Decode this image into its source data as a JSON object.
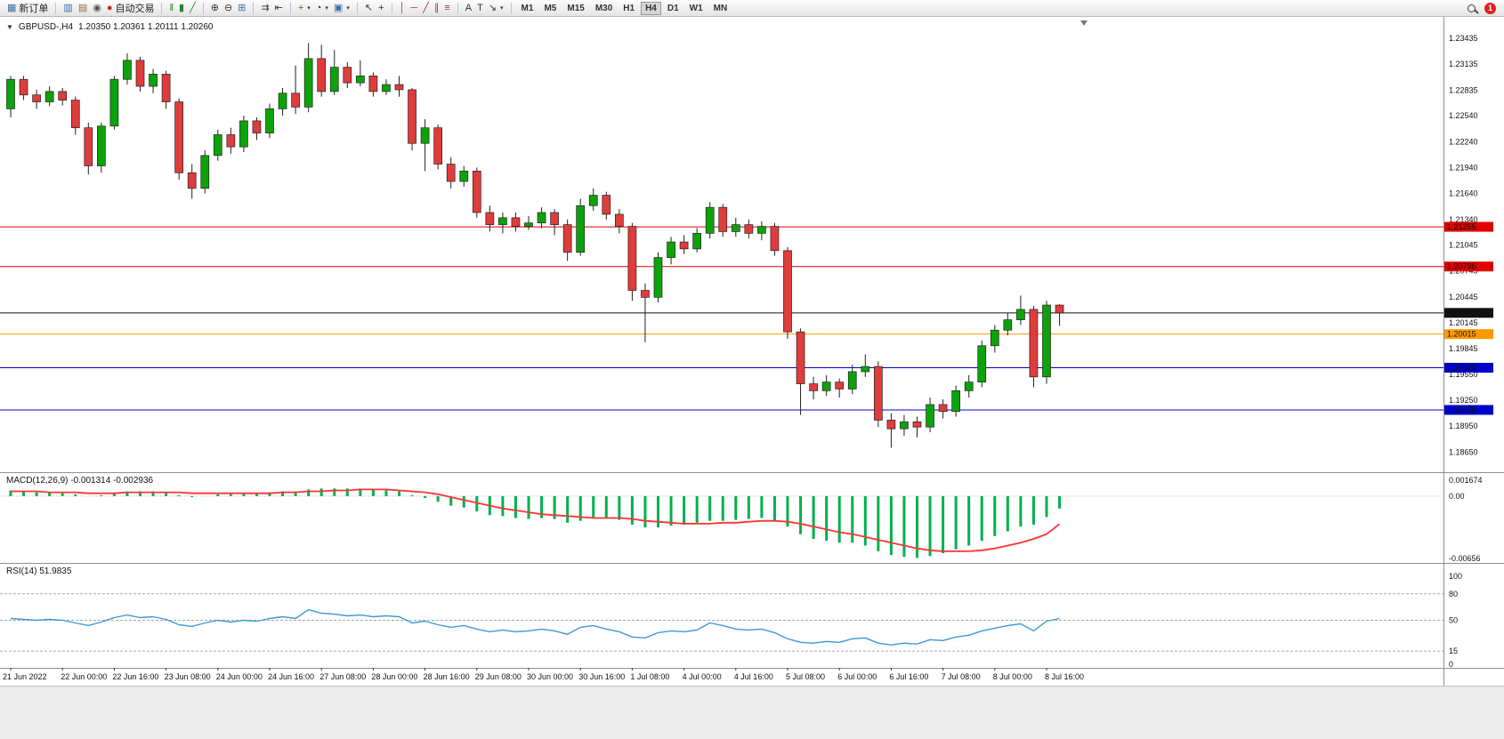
{
  "toolbar": {
    "groups": [
      {
        "name": "trade",
        "items": [
          {
            "name": "new-order-button",
            "glyph": "▦",
            "glyph_color": "#3b6ea5",
            "label": "新订单"
          }
        ]
      },
      {
        "name": "windows",
        "items": [
          {
            "name": "charts-icon",
            "glyph": "▥",
            "glyph_color": "#3b6ea5"
          },
          {
            "name": "profiles-icon",
            "glyph": "▤",
            "glyph_color": "#8a6d3b"
          },
          {
            "name": "alerts-icon",
            "glyph": "◉",
            "glyph_color": "#555555"
          },
          {
            "name": "auto-trading-button",
            "glyph": "●",
            "glyph_color": "#cc2222",
            "label": "自动交易"
          }
        ]
      },
      {
        "name": "chart-type",
        "items": [
          {
            "name": "bar-chart-button",
            "glyph": "‖",
            "glyph_color": "#2e7d32"
          },
          {
            "name": "candlestick-button",
            "glyph": "▮",
            "glyph_color": "#2e7d32"
          },
          {
            "name": "line-chart-button",
            "glyph": "╱",
            "glyph_color": "#2e7d32"
          }
        ]
      },
      {
        "name": "zoom",
        "items": [
          {
            "name": "zoom-in-button",
            "glyph": "⊕",
            "glyph_color": "#333333"
          },
          {
            "name": "zoom-out-button",
            "glyph": "⊖",
            "glyph_color": "#333333"
          },
          {
            "name": "tile-windows-button",
            "glyph": "⊞",
            "glyph_color": "#3b6ea5"
          }
        ]
      },
      {
        "name": "scroll",
        "items": [
          {
            "name": "auto-scroll-button",
            "glyph": "⇉",
            "glyph_color": "#333333"
          },
          {
            "name": "chart-shift-button",
            "glyph": "⇤",
            "glyph_color": "#333333"
          }
        ]
      },
      {
        "name": "insert",
        "items": [
          {
            "name": "indicators-button",
            "glyph": "+",
            "glyph_color": "#2e7d32",
            "dropdown": true
          },
          {
            "name": "periods-button",
            "glyph": "◔",
            "glyph_color": "#333333",
            "dropdown": true
          },
          {
            "name": "templates-button",
            "glyph": "▣",
            "glyph_color": "#3b6ea5",
            "dropdown": true
          }
        ]
      },
      {
        "name": "pointer",
        "items": [
          {
            "name": "cursor-button",
            "glyph": "↖",
            "glyph_color": "#333333"
          },
          {
            "name": "crosshair-button",
            "glyph": "+",
            "glyph_color": "#333333"
          }
        ]
      },
      {
        "name": "draw",
        "items": [
          {
            "name": "vertical-line-button",
            "glyph": "│",
            "glyph_color": "#b03030"
          },
          {
            "name": "horizontal-line-button",
            "glyph": "─",
            "glyph_color": "#b03030"
          },
          {
            "name": "trendline-button",
            "glyph": "╱",
            "glyph_color": "#b03030"
          },
          {
            "name": "equidistant-channel-button",
            "glyph": "∥",
            "glyph_color": "#b03030"
          },
          {
            "name": "fibonacci-button",
            "glyph": "≡",
            "glyph_color": "#b03030"
          }
        ]
      },
      {
        "name": "text",
        "items": [
          {
            "name": "text-button",
            "glyph": "A",
            "glyph_color": "#333333"
          },
          {
            "name": "text-label-button",
            "glyph": "T",
            "glyph_color": "#333333"
          },
          {
            "name": "arrows-button",
            "glyph": "↘",
            "glyph_color": "#333333",
            "dropdown": true
          }
        ]
      }
    ],
    "timeframes": {
      "items": [
        "M1",
        "M5",
        "M15",
        "M30",
        "H1",
        "H4",
        "D1",
        "W1",
        "MN"
      ],
      "active": "H4"
    },
    "notification_count": "1"
  },
  "chart": {
    "header": {
      "dropdown_glyph": "▼",
      "symbol_period": "GBPUSD-,H4",
      "ohlc": "1.20350 1.20361 1.20111 1.20260"
    },
    "price_axis": {
      "labels": [
        "1.23435",
        "1.23135",
        "1.22835",
        "1.22540",
        "1.22240",
        "1.21940",
        "1.21640",
        "1.21340",
        "1.21045",
        "1.20745",
        "1.20445",
        "1.20145",
        "1.19845",
        "1.19550",
        "1.19250",
        "1.18950",
        "1.18650"
      ]
    },
    "time_axis": {
      "labels": [
        "21 Jun 2022",
        "22 Jun 00:00",
        "22 Jun 16:00",
        "23 Jun 08:00",
        "24 Jun 00:00",
        "24 Jun 16:00",
        "27 Jun 08:00",
        "28 Jun 00:00",
        "28 Jun 16:00",
        "29 Jun 08:00",
        "30 Jun 00:00",
        "30 Jun 16:00",
        "1 Jul 08:00",
        "4 Jul 00:00",
        "4 Jul 16:00",
        "5 Jul 08:00",
        "6 Jul 00:00",
        "6 Jul 16:00",
        "7 Jul 08:00",
        "8 Jul 00:00",
        "8 Jul 16:00"
      ]
    },
    "hlines": [
      {
        "price": 1.21255,
        "color": "#dd0000",
        "tag": "1.21255"
      },
      {
        "price": 1.20796,
        "color": "#dd0000",
        "tag": "1.20796"
      },
      {
        "price": 1.2026,
        "color": "#111111",
        "tag": "1.20260"
      },
      {
        "price": 1.20015,
        "color": "#ff9900",
        "tag": "1.20015"
      },
      {
        "price": 1.19626,
        "color": "#0000cc",
        "tag": "1.19626"
      },
      {
        "price": 1.19138,
        "color": "#0000cc",
        "tag": "1.19138"
      }
    ],
    "colors": {
      "up": "#0ca30a",
      "down": "#e03c3c",
      "wick": "#222222"
    }
  },
  "macd": {
    "label": "MACD(12,26,9) -0.001314 -0.002936",
    "axis": [
      {
        "text": "0.001674",
        "value": 0.001674
      },
      {
        "text": "0.00",
        "value": 0
      },
      {
        "text": "-0.00656",
        "value": -0.00656
      }
    ],
    "colors": {
      "histogram": "#00b050",
      "signal": "#ff3333"
    }
  },
  "rsi": {
    "label": "RSI(14) 51.9835",
    "axis": [
      {
        "text": "100",
        "value": 100
      },
      {
        "text": "80",
        "value": 80
      },
      {
        "text": "50",
        "value": 50
      },
      {
        "text": "15",
        "value": 15
      },
      {
        "text": "0",
        "value": 0
      }
    ],
    "colors": {
      "line": "#3d9bd5",
      "levels": "#a8a8a8"
    }
  },
  "chart_data": {
    "type": "candlestick",
    "symbol": "GBPUSD-",
    "period": "H4",
    "ohlc_format": [
      "open",
      "high",
      "low",
      "close"
    ],
    "price_range": {
      "top": 1.236,
      "bottom": 1.185
    },
    "candles": [
      [
        1.2262,
        1.23,
        1.2252,
        1.2296
      ],
      [
        1.2296,
        1.23,
        1.2272,
        1.2278
      ],
      [
        1.2278,
        1.2284,
        1.2262,
        1.227
      ],
      [
        1.227,
        1.2288,
        1.2265,
        1.2282
      ],
      [
        1.2282,
        1.2286,
        1.2266,
        1.2272
      ],
      [
        1.2272,
        1.2276,
        1.2232,
        1.224
      ],
      [
        1.224,
        1.2246,
        1.2186,
        1.2196
      ],
      [
        1.2196,
        1.2246,
        1.2188,
        1.2242
      ],
      [
        1.2242,
        1.23,
        1.2238,
        1.2296
      ],
      [
        1.2296,
        1.2326,
        1.229,
        1.2318
      ],
      [
        1.2318,
        1.2322,
        1.2282,
        1.2288
      ],
      [
        1.2288,
        1.2308,
        1.228,
        1.2302
      ],
      [
        1.2302,
        1.2306,
        1.2262,
        1.227
      ],
      [
        1.227,
        1.2274,
        1.218,
        1.2188
      ],
      [
        1.2188,
        1.2198,
        1.2158,
        1.217
      ],
      [
        1.217,
        1.2214,
        1.2164,
        1.2208
      ],
      [
        1.2208,
        1.2238,
        1.2202,
        1.2232
      ],
      [
        1.2232,
        1.224,
        1.221,
        1.2218
      ],
      [
        1.2218,
        1.2254,
        1.2212,
        1.2248
      ],
      [
        1.2248,
        1.2252,
        1.2226,
        1.2234
      ],
      [
        1.2234,
        1.2268,
        1.2228,
        1.2262
      ],
      [
        1.2262,
        1.2286,
        1.2254,
        1.228
      ],
      [
        1.228,
        1.2312,
        1.2256,
        1.2264
      ],
      [
        1.2264,
        1.2338,
        1.2258,
        1.232
      ],
      [
        1.232,
        1.2336,
        1.2276,
        1.2282
      ],
      [
        1.2282,
        1.233,
        1.2278,
        1.231
      ],
      [
        1.231,
        1.2316,
        1.2286,
        1.2292
      ],
      [
        1.2292,
        1.2318,
        1.2288,
        1.23
      ],
      [
        1.23,
        1.2304,
        1.2276,
        1.2282
      ],
      [
        1.2282,
        1.2296,
        1.2278,
        1.229
      ],
      [
        1.229,
        1.23,
        1.2276,
        1.2284
      ],
      [
        1.2284,
        1.2286,
        1.2214,
        1.2222
      ],
      [
        1.2222,
        1.225,
        1.219,
        1.224
      ],
      [
        1.224,
        1.2244,
        1.2192,
        1.2198
      ],
      [
        1.2198,
        1.2206,
        1.217,
        1.2178
      ],
      [
        1.2178,
        1.2196,
        1.2172,
        1.219
      ],
      [
        1.219,
        1.2194,
        1.2136,
        1.2142
      ],
      [
        1.2142,
        1.215,
        1.212,
        1.2128
      ],
      [
        1.2128,
        1.2142,
        1.2118,
        1.2136
      ],
      [
        1.2136,
        1.2142,
        1.212,
        1.2126
      ],
      [
        1.2126,
        1.2138,
        1.2122,
        1.213
      ],
      [
        1.213,
        1.2148,
        1.2124,
        1.2142
      ],
      [
        1.2142,
        1.2146,
        1.2116,
        1.2128
      ],
      [
        1.2128,
        1.2134,
        1.2086,
        1.2096
      ],
      [
        1.2096,
        1.2158,
        1.2092,
        1.215
      ],
      [
        1.215,
        1.217,
        1.2144,
        1.2162
      ],
      [
        1.2162,
        1.2166,
        1.2134,
        1.214
      ],
      [
        1.214,
        1.2146,
        1.2118,
        1.2126
      ],
      [
        1.2126,
        1.213,
        1.204,
        1.2052
      ],
      [
        1.2052,
        1.206,
        1.1992,
        1.2044
      ],
      [
        1.2044,
        1.2096,
        1.2038,
        1.209
      ],
      [
        1.209,
        1.2114,
        1.2082,
        1.2108
      ],
      [
        1.2108,
        1.2116,
        1.2094,
        1.21
      ],
      [
        1.21,
        1.2124,
        1.2096,
        1.2118
      ],
      [
        1.2118,
        1.2154,
        1.2112,
        1.2148
      ],
      [
        1.2148,
        1.2152,
        1.2114,
        1.212
      ],
      [
        1.212,
        1.2136,
        1.2114,
        1.2128
      ],
      [
        1.2128,
        1.2134,
        1.2112,
        1.2118
      ],
      [
        1.2118,
        1.2132,
        1.211,
        1.2126
      ],
      [
        1.2126,
        1.213,
        1.2092,
        1.2098
      ],
      [
        1.2098,
        1.2102,
        1.1996,
        1.2004
      ],
      [
        1.2004,
        1.2008,
        1.1908,
        1.1944
      ],
      [
        1.1944,
        1.1952,
        1.1926,
        1.1936
      ],
      [
        1.1936,
        1.1954,
        1.193,
        1.1946
      ],
      [
        1.1946,
        1.195,
        1.1928,
        1.1938
      ],
      [
        1.1938,
        1.1966,
        1.1932,
        1.1958
      ],
      [
        1.1958,
        1.1978,
        1.1952,
        1.1964
      ],
      [
        1.1964,
        1.197,
        1.1894,
        1.1902
      ],
      [
        1.1902,
        1.191,
        1.187,
        1.1892
      ],
      [
        1.1892,
        1.1908,
        1.1884,
        1.19
      ],
      [
        1.19,
        1.1906,
        1.1882,
        1.1894
      ],
      [
        1.1894,
        1.1928,
        1.1888,
        1.192
      ],
      [
        1.192,
        1.1926,
        1.1904,
        1.1912
      ],
      [
        1.1912,
        1.1942,
        1.1906,
        1.1936
      ],
      [
        1.1936,
        1.1954,
        1.1928,
        1.1946
      ],
      [
        1.1946,
        1.1994,
        1.194,
        1.1988
      ],
      [
        1.1988,
        1.2012,
        1.198,
        1.2006
      ],
      [
        1.2006,
        1.2026,
        1.2,
        1.2018
      ],
      [
        1.2018,
        1.2046,
        1.2012,
        1.203
      ],
      [
        1.203,
        1.2034,
        1.194,
        1.1952
      ],
      [
        1.1952,
        1.204,
        1.1944,
        1.2035
      ],
      [
        1.2035,
        1.20361,
        1.20111,
        1.2026
      ]
    ],
    "indicators": {
      "macd": {
        "range": {
          "max": 0.001674,
          "min": -0.00656
        },
        "histogram": [
          0.0006,
          0.0005,
          0.0004,
          0.0004,
          0.0003,
          0.0002,
          0.0,
          0.0001,
          0.0003,
          0.0005,
          0.0005,
          0.0005,
          0.0004,
          0.0001,
          -0.0001,
          0.0,
          0.0002,
          0.0002,
          0.0003,
          0.0003,
          0.0004,
          0.0005,
          0.0005,
          0.0007,
          0.0008,
          0.0008,
          0.0008,
          0.0008,
          0.0007,
          0.0006,
          0.0005,
          0.0001,
          -0.0002,
          -0.0006,
          -0.001,
          -0.0012,
          -0.0016,
          -0.002,
          -0.0021,
          -0.0023,
          -0.0024,
          -0.0023,
          -0.0024,
          -0.0028,
          -0.0026,
          -0.0023,
          -0.0023,
          -0.0025,
          -0.003,
          -0.0033,
          -0.0033,
          -0.0031,
          -0.003,
          -0.0028,
          -0.0026,
          -0.0026,
          -0.0025,
          -0.0024,
          -0.0023,
          -0.0026,
          -0.0032,
          -0.004,
          -0.0045,
          -0.0047,
          -0.0049,
          -0.0049,
          -0.0052,
          -0.0058,
          -0.0062,
          -0.0064,
          -0.0065,
          -0.0063,
          -0.006,
          -0.0056,
          -0.0052,
          -0.0047,
          -0.0042,
          -0.0037,
          -0.0032,
          -0.003,
          -0.0022,
          -0.0013
        ],
        "signal": [
          0.0005,
          0.0005,
          0.0005,
          0.0004,
          0.0004,
          0.0004,
          0.0003,
          0.0003,
          0.0003,
          0.0004,
          0.0004,
          0.0004,
          0.0004,
          0.0004,
          0.0003,
          0.0003,
          0.0003,
          0.0003,
          0.0003,
          0.0003,
          0.0003,
          0.0004,
          0.0004,
          0.0005,
          0.0005,
          0.0006,
          0.0006,
          0.0007,
          0.0007,
          0.0007,
          0.0006,
          0.0005,
          0.0004,
          0.0002,
          -0.0001,
          -0.0004,
          -0.0007,
          -0.001,
          -0.0013,
          -0.0015,
          -0.0017,
          -0.0019,
          -0.002,
          -0.0021,
          -0.0022,
          -0.0023,
          -0.0023,
          -0.0023,
          -0.0024,
          -0.0026,
          -0.0027,
          -0.0028,
          -0.0029,
          -0.0029,
          -0.0029,
          -0.0028,
          -0.0028,
          -0.0027,
          -0.0026,
          -0.0026,
          -0.0027,
          -0.0029,
          -0.0032,
          -0.0035,
          -0.0038,
          -0.004,
          -0.0043,
          -0.0046,
          -0.0049,
          -0.0052,
          -0.0055,
          -0.0057,
          -0.0058,
          -0.0058,
          -0.0058,
          -0.0057,
          -0.0055,
          -0.0052,
          -0.0049,
          -0.0045,
          -0.004,
          -0.00294
        ]
      },
      "rsi": {
        "range": {
          "max": 100,
          "min": 0
        },
        "levels": [
          80,
          50,
          15
        ],
        "values": [
          52,
          51,
          50,
          51,
          50,
          47,
          44,
          48,
          53,
          56,
          53,
          54,
          51,
          45,
          43,
          47,
          50,
          48,
          50,
          49,
          52,
          54,
          52,
          62,
          58,
          57,
          55,
          56,
          54,
          55,
          54,
          47,
          49,
          45,
          42,
          44,
          40,
          37,
          39,
          37,
          38,
          40,
          38,
          34,
          42,
          44,
          40,
          37,
          31,
          30,
          36,
          38,
          37,
          39,
          47,
          44,
          40,
          39,
          40,
          36,
          29,
          25,
          24,
          26,
          25,
          29,
          30,
          24,
          22,
          24,
          23,
          28,
          27,
          31,
          33,
          38,
          41,
          44,
          46,
          38,
          49,
          51.98
        ]
      }
    }
  }
}
